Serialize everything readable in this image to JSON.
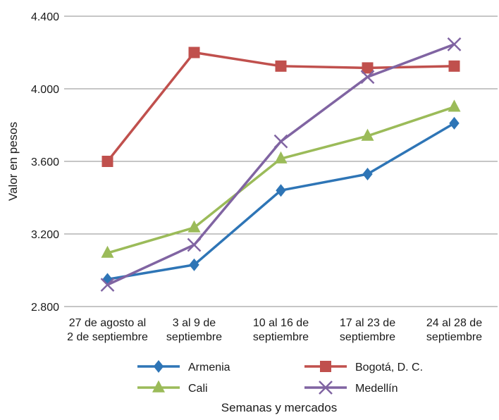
{
  "chart_data": {
    "type": "line",
    "categories": [
      [
        "27 de agosto al",
        "2 de septiembre"
      ],
      [
        "3 al 9 de",
        "septiembre"
      ],
      [
        "10 al 16 de",
        "septiembre"
      ],
      [
        "17 al 23 de",
        "septiembre"
      ],
      [
        "24 al 28 de",
        "septiembre"
      ]
    ],
    "ylabel": "Valor en pesos",
    "xlabel": "Semanas y mercados",
    "ylim": [
      2800,
      4400
    ],
    "yticks": [
      2800,
      3200,
      3600,
      4000,
      4400
    ],
    "ytick_labels": [
      "2.800",
      "3.200",
      "3.600",
      "4.000",
      "4.400"
    ],
    "grid": "horizontal",
    "legend_position": "bottom",
    "series": [
      {
        "name": "Armenia",
        "color": "#2e75b6",
        "marker": "diamond",
        "values": [
          2950,
          3030,
          3440,
          3530,
          3810
        ]
      },
      {
        "name": "Bogotá, D. C.",
        "color": "#c0504d",
        "marker": "square",
        "values": [
          3600,
          4200,
          4125,
          4115,
          4125
        ]
      },
      {
        "name": "Cali",
        "color": "#9bbb59",
        "marker": "triangle",
        "values": [
          3095,
          3235,
          3615,
          3740,
          3900
        ]
      },
      {
        "name": "Medellín",
        "color": "#8064a2",
        "marker": "x",
        "values": [
          2920,
          3140,
          3710,
          4065,
          4245
        ]
      }
    ]
  }
}
